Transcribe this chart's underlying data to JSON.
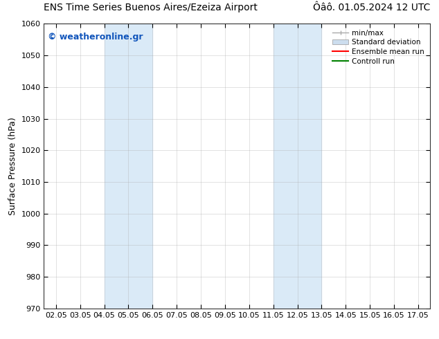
{
  "title_left": "ENS Time Series Buenos Aires/Ezeiza Airport",
  "title_right": "Ôâô. 01.05.2024 12 UTC",
  "ylabel": "Surface Pressure (hPa)",
  "ylim": [
    970,
    1060
  ],
  "yticks": [
    970,
    980,
    990,
    1000,
    1010,
    1020,
    1030,
    1040,
    1050,
    1060
  ],
  "xlabels": [
    "02.05",
    "03.05",
    "04.05",
    "05.05",
    "06.05",
    "07.05",
    "08.05",
    "09.05",
    "10.05",
    "11.05",
    "12.05",
    "13.05",
    "14.05",
    "15.05",
    "16.05",
    "17.05"
  ],
  "xvalues": [
    2,
    3,
    4,
    5,
    6,
    7,
    8,
    9,
    10,
    11,
    12,
    13,
    14,
    15,
    16,
    17
  ],
  "xlim": [
    1.5,
    17.5
  ],
  "shaded_regions": [
    {
      "xstart": 4,
      "xend": 6,
      "color": "#daeaf7"
    },
    {
      "xstart": 11,
      "xend": 13,
      "color": "#daeaf7"
    }
  ],
  "watermark": "© weatheronline.gr",
  "watermark_color": "#1155bb",
  "legend_entries": [
    {
      "label": "min/max",
      "type": "minmax",
      "color": "#aaaaaa"
    },
    {
      "label": "Standard deviation",
      "type": "patch",
      "color": "#ccddee"
    },
    {
      "label": "Ensemble mean run",
      "type": "line",
      "color": "red"
    },
    {
      "label": "Controll run",
      "type": "line",
      "color": "green"
    }
  ],
  "background_color": "#ffffff",
  "grid_color": "#aaaaaa",
  "title_fontsize": 10,
  "ylabel_fontsize": 9,
  "tick_fontsize": 8,
  "legend_fontsize": 7.5,
  "watermark_fontsize": 9
}
